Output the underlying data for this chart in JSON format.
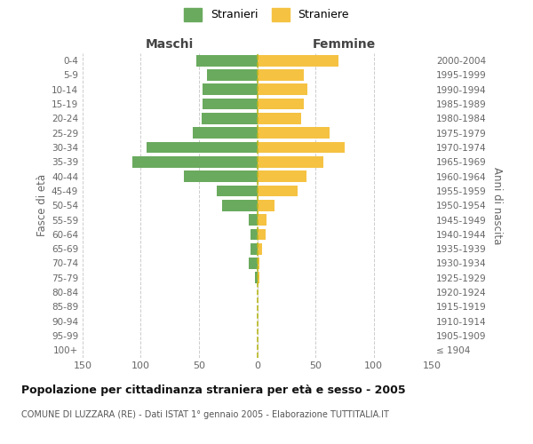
{
  "age_groups": [
    "100+",
    "95-99",
    "90-94",
    "85-89",
    "80-84",
    "75-79",
    "70-74",
    "65-69",
    "60-64",
    "55-59",
    "50-54",
    "45-49",
    "40-44",
    "35-39",
    "30-34",
    "25-29",
    "20-24",
    "15-19",
    "10-14",
    "5-9",
    "0-4"
  ],
  "birth_years": [
    "≤ 1904",
    "1905-1909",
    "1910-1914",
    "1915-1919",
    "1920-1924",
    "1925-1929",
    "1930-1934",
    "1935-1939",
    "1940-1944",
    "1945-1949",
    "1950-1954",
    "1955-1959",
    "1960-1964",
    "1965-1969",
    "1970-1974",
    "1975-1979",
    "1980-1984",
    "1985-1989",
    "1990-1994",
    "1995-1999",
    "2000-2004"
  ],
  "maschi": [
    0,
    0,
    0,
    0,
    0,
    2,
    7,
    6,
    6,
    7,
    30,
    35,
    63,
    107,
    95,
    55,
    48,
    47,
    47,
    43,
    52
  ],
  "femmine": [
    0,
    0,
    0,
    0,
    0,
    2,
    2,
    4,
    7,
    8,
    15,
    35,
    42,
    57,
    75,
    62,
    38,
    40,
    43,
    40,
    70
  ],
  "color_maschi": "#6aaa5e",
  "color_femmine": "#f5c242",
  "title": "Popolazione per cittadinanza straniera per età e sesso - 2005",
  "subtitle": "COMUNE DI LUZZARA (RE) - Dati ISTAT 1° gennaio 2005 - Elaborazione TUTTITALIA.IT",
  "label_maschi": "Maschi",
  "label_femmine": "Femmine",
  "ylabel_left": "Fasce di età",
  "ylabel_right": "Anni di nascita",
  "legend_maschi": "Stranieri",
  "legend_femmine": "Straniere",
  "xlim": 150,
  "background_color": "#ffffff",
  "grid_color": "#cccccc",
  "center_line_color": "#b8b820",
  "tick_label_color": "#666666",
  "header_color": "#444444",
  "title_color": "#111111",
  "subtitle_color": "#555555"
}
